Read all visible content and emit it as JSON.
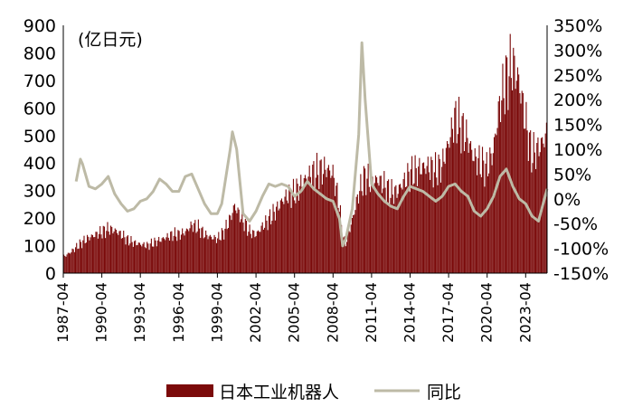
{
  "chart_data": {
    "type": "bar",
    "unit_label": "(亿日元)",
    "y_left": {
      "ticks": [
        "900",
        "800",
        "700",
        "600",
        "500",
        "400",
        "300",
        "200",
        "100",
        "0"
      ],
      "range": [
        0,
        900
      ]
    },
    "y_right": {
      "ticks": [
        "350%",
        "300%",
        "250%",
        "200%",
        "150%",
        "100%",
        "50%",
        "0%",
        "-50%",
        "-100%",
        "-150%"
      ],
      "range": [
        -150,
        350
      ]
    },
    "x_tick_labels": [
      "1987-04",
      "1990-04",
      "1993-04",
      "1996-04",
      "1999-04",
      "2002-04",
      "2005-04",
      "2008-04",
      "2011-04",
      "2014-04",
      "2017-04",
      "2020-04",
      "2023-04"
    ],
    "x_range": [
      "1987-04",
      "2024-12"
    ],
    "series": [
      {
        "name": "日本工业机器人",
        "kind": "bar",
        "axis": "left",
        "color": "#7B0A0A",
        "points": [
          [
            "1987-04",
            60
          ],
          [
            "1987-10",
            75
          ],
          [
            "1988-04",
            95
          ],
          [
            "1988-10",
            115
          ],
          [
            "1989-04",
            130
          ],
          [
            "1989-10",
            140
          ],
          [
            "1990-04",
            150
          ],
          [
            "1990-10",
            160
          ],
          [
            "1991-04",
            155
          ],
          [
            "1991-10",
            140
          ],
          [
            "1992-04",
            120
          ],
          [
            "1992-10",
            110
          ],
          [
            "1993-04",
            105
          ],
          [
            "1993-10",
            100
          ],
          [
            "1994-04",
            110
          ],
          [
            "1994-10",
            120
          ],
          [
            "1995-04",
            130
          ],
          [
            "1995-10",
            140
          ],
          [
            "1996-04",
            140
          ],
          [
            "1996-10",
            150
          ],
          [
            "1997-04",
            175
          ],
          [
            "1997-10",
            165
          ],
          [
            "1998-04",
            140
          ],
          [
            "1998-10",
            130
          ],
          [
            "1999-04",
            125
          ],
          [
            "1999-10",
            150
          ],
          [
            "2000-04",
            200
          ],
          [
            "2000-08",
            245
          ],
          [
            "2000-10",
            230
          ],
          [
            "2001-04",
            190
          ],
          [
            "2001-10",
            150
          ],
          [
            "2002-04",
            140
          ],
          [
            "2002-10",
            170
          ],
          [
            "2003-04",
            195
          ],
          [
            "2003-10",
            225
          ],
          [
            "2004-04",
            260
          ],
          [
            "2004-10",
            285
          ],
          [
            "2005-04",
            290
          ],
          [
            "2005-10",
            320
          ],
          [
            "2006-04",
            350
          ],
          [
            "2006-10",
            365
          ],
          [
            "2007-04",
            370
          ],
          [
            "2007-10",
            380
          ],
          [
            "2008-04",
            360
          ],
          [
            "2008-10",
            250
          ],
          [
            "2009-01",
            130
          ],
          [
            "2009-04",
            110
          ],
          [
            "2009-10",
            190
          ],
          [
            "2010-04",
            290
          ],
          [
            "2010-10",
            350
          ],
          [
            "2011-04",
            330
          ],
          [
            "2011-10",
            340
          ],
          [
            "2012-04",
            320
          ],
          [
            "2012-10",
            290
          ],
          [
            "2013-04",
            295
          ],
          [
            "2013-10",
            330
          ],
          [
            "2014-04",
            360
          ],
          [
            "2014-10",
            370
          ],
          [
            "2015-04",
            385
          ],
          [
            "2015-10",
            385
          ],
          [
            "2016-04",
            370
          ],
          [
            "2016-10",
            390
          ],
          [
            "2017-04",
            470
          ],
          [
            "2017-10",
            560
          ],
          [
            "2018-04",
            530
          ],
          [
            "2018-10",
            490
          ],
          [
            "2019-04",
            420
          ],
          [
            "2019-10",
            400
          ],
          [
            "2020-04",
            380
          ],
          [
            "2020-10",
            440
          ],
          [
            "2021-04",
            610
          ],
          [
            "2021-10",
            700
          ],
          [
            "2022-04",
            760
          ],
          [
            "2022-10",
            700
          ],
          [
            "2023-04",
            560
          ],
          [
            "2023-10",
            430
          ],
          [
            "2024-04",
            450
          ],
          [
            "2024-12",
            500
          ]
        ]
      },
      {
        "name": "同比",
        "kind": "line",
        "axis": "right",
        "color": "#BDBAA6",
        "points": [
          [
            "1988-04",
            35
          ],
          [
            "1988-08",
            80
          ],
          [
            "1988-10",
            70
          ],
          [
            "1989-04",
            25
          ],
          [
            "1989-10",
            20
          ],
          [
            "1990-04",
            30
          ],
          [
            "1990-10",
            45
          ],
          [
            "1991-04",
            10
          ],
          [
            "1991-10",
            -10
          ],
          [
            "1992-04",
            -25
          ],
          [
            "1992-10",
            -20
          ],
          [
            "1993-04",
            -5
          ],
          [
            "1993-10",
            0
          ],
          [
            "1994-04",
            15
          ],
          [
            "1994-10",
            40
          ],
          [
            "1995-04",
            30
          ],
          [
            "1995-10",
            15
          ],
          [
            "1996-04",
            15
          ],
          [
            "1996-10",
            45
          ],
          [
            "1997-04",
            50
          ],
          [
            "1997-10",
            20
          ],
          [
            "1998-04",
            -10
          ],
          [
            "1998-10",
            -30
          ],
          [
            "1999-04",
            -30
          ],
          [
            "1999-08",
            -10
          ],
          [
            "2000-04",
            100
          ],
          [
            "2000-06",
            135
          ],
          [
            "2000-10",
            100
          ],
          [
            "2001-04",
            -30
          ],
          [
            "2001-10",
            -45
          ],
          [
            "2002-04",
            -25
          ],
          [
            "2002-10",
            5
          ],
          [
            "2003-04",
            30
          ],
          [
            "2003-10",
            25
          ],
          [
            "2004-04",
            30
          ],
          [
            "2004-10",
            25
          ],
          [
            "2005-04",
            5
          ],
          [
            "2005-10",
            15
          ],
          [
            "2006-04",
            35
          ],
          [
            "2006-10",
            20
          ],
          [
            "2007-04",
            10
          ],
          [
            "2007-10",
            0
          ],
          [
            "2008-04",
            -5
          ],
          [
            "2008-10",
            -40
          ],
          [
            "2009-01",
            -95
          ],
          [
            "2009-04",
            -80
          ],
          [
            "2009-10",
            -20
          ],
          [
            "2010-04",
            130
          ],
          [
            "2010-07",
            315
          ],
          [
            "2010-10",
            200
          ],
          [
            "2011-04",
            30
          ],
          [
            "2011-10",
            10
          ],
          [
            "2012-04",
            -5
          ],
          [
            "2012-10",
            -15
          ],
          [
            "2013-04",
            -20
          ],
          [
            "2013-10",
            5
          ],
          [
            "2014-04",
            25
          ],
          [
            "2014-10",
            20
          ],
          [
            "2015-04",
            15
          ],
          [
            "2015-10",
            5
          ],
          [
            "2016-04",
            -5
          ],
          [
            "2016-10",
            5
          ],
          [
            "2017-04",
            25
          ],
          [
            "2017-10",
            30
          ],
          [
            "2018-04",
            15
          ],
          [
            "2018-10",
            5
          ],
          [
            "2019-04",
            -25
          ],
          [
            "2019-10",
            -35
          ],
          [
            "2020-04",
            -20
          ],
          [
            "2020-10",
            5
          ],
          [
            "2021-04",
            45
          ],
          [
            "2021-10",
            60
          ],
          [
            "2022-04",
            25
          ],
          [
            "2022-10",
            0
          ],
          [
            "2023-04",
            -10
          ],
          [
            "2023-10",
            -35
          ],
          [
            "2024-04",
            -45
          ],
          [
            "2024-12",
            20
          ]
        ]
      }
    ],
    "grid": false,
    "legend": {
      "placement": "bottom",
      "items": [
        "日本工业机器人",
        "同比"
      ]
    }
  }
}
